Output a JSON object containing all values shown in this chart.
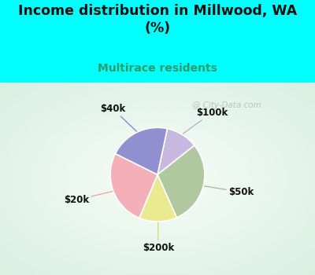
{
  "title": "Income distribution in Millwood, WA\n(%)",
  "subtitle": "Multirace residents",
  "title_color": "#111111",
  "subtitle_color": "#2a9d6e",
  "background_color": "#00FFFF",
  "chart_bg_color": "#e0f0e8",
  "labels": [
    "$100k",
    "$50k",
    "$200k",
    "$20k",
    "$40k"
  ],
  "sizes": [
    11,
    29,
    13,
    26,
    21
  ],
  "colors": [
    "#c8b8e0",
    "#b0c8a0",
    "#eaea90",
    "#f4b0b8",
    "#9090d0"
  ],
  "wedge_edge_color": "#ffffff",
  "watermark": "  City-Data.com",
  "start_angle": 90,
  "label_color": "#111111",
  "line_colors": [
    "#b8a8d0",
    "#a8b890",
    "#d8d870",
    "#f0a0a8",
    "#8080c0"
  ]
}
